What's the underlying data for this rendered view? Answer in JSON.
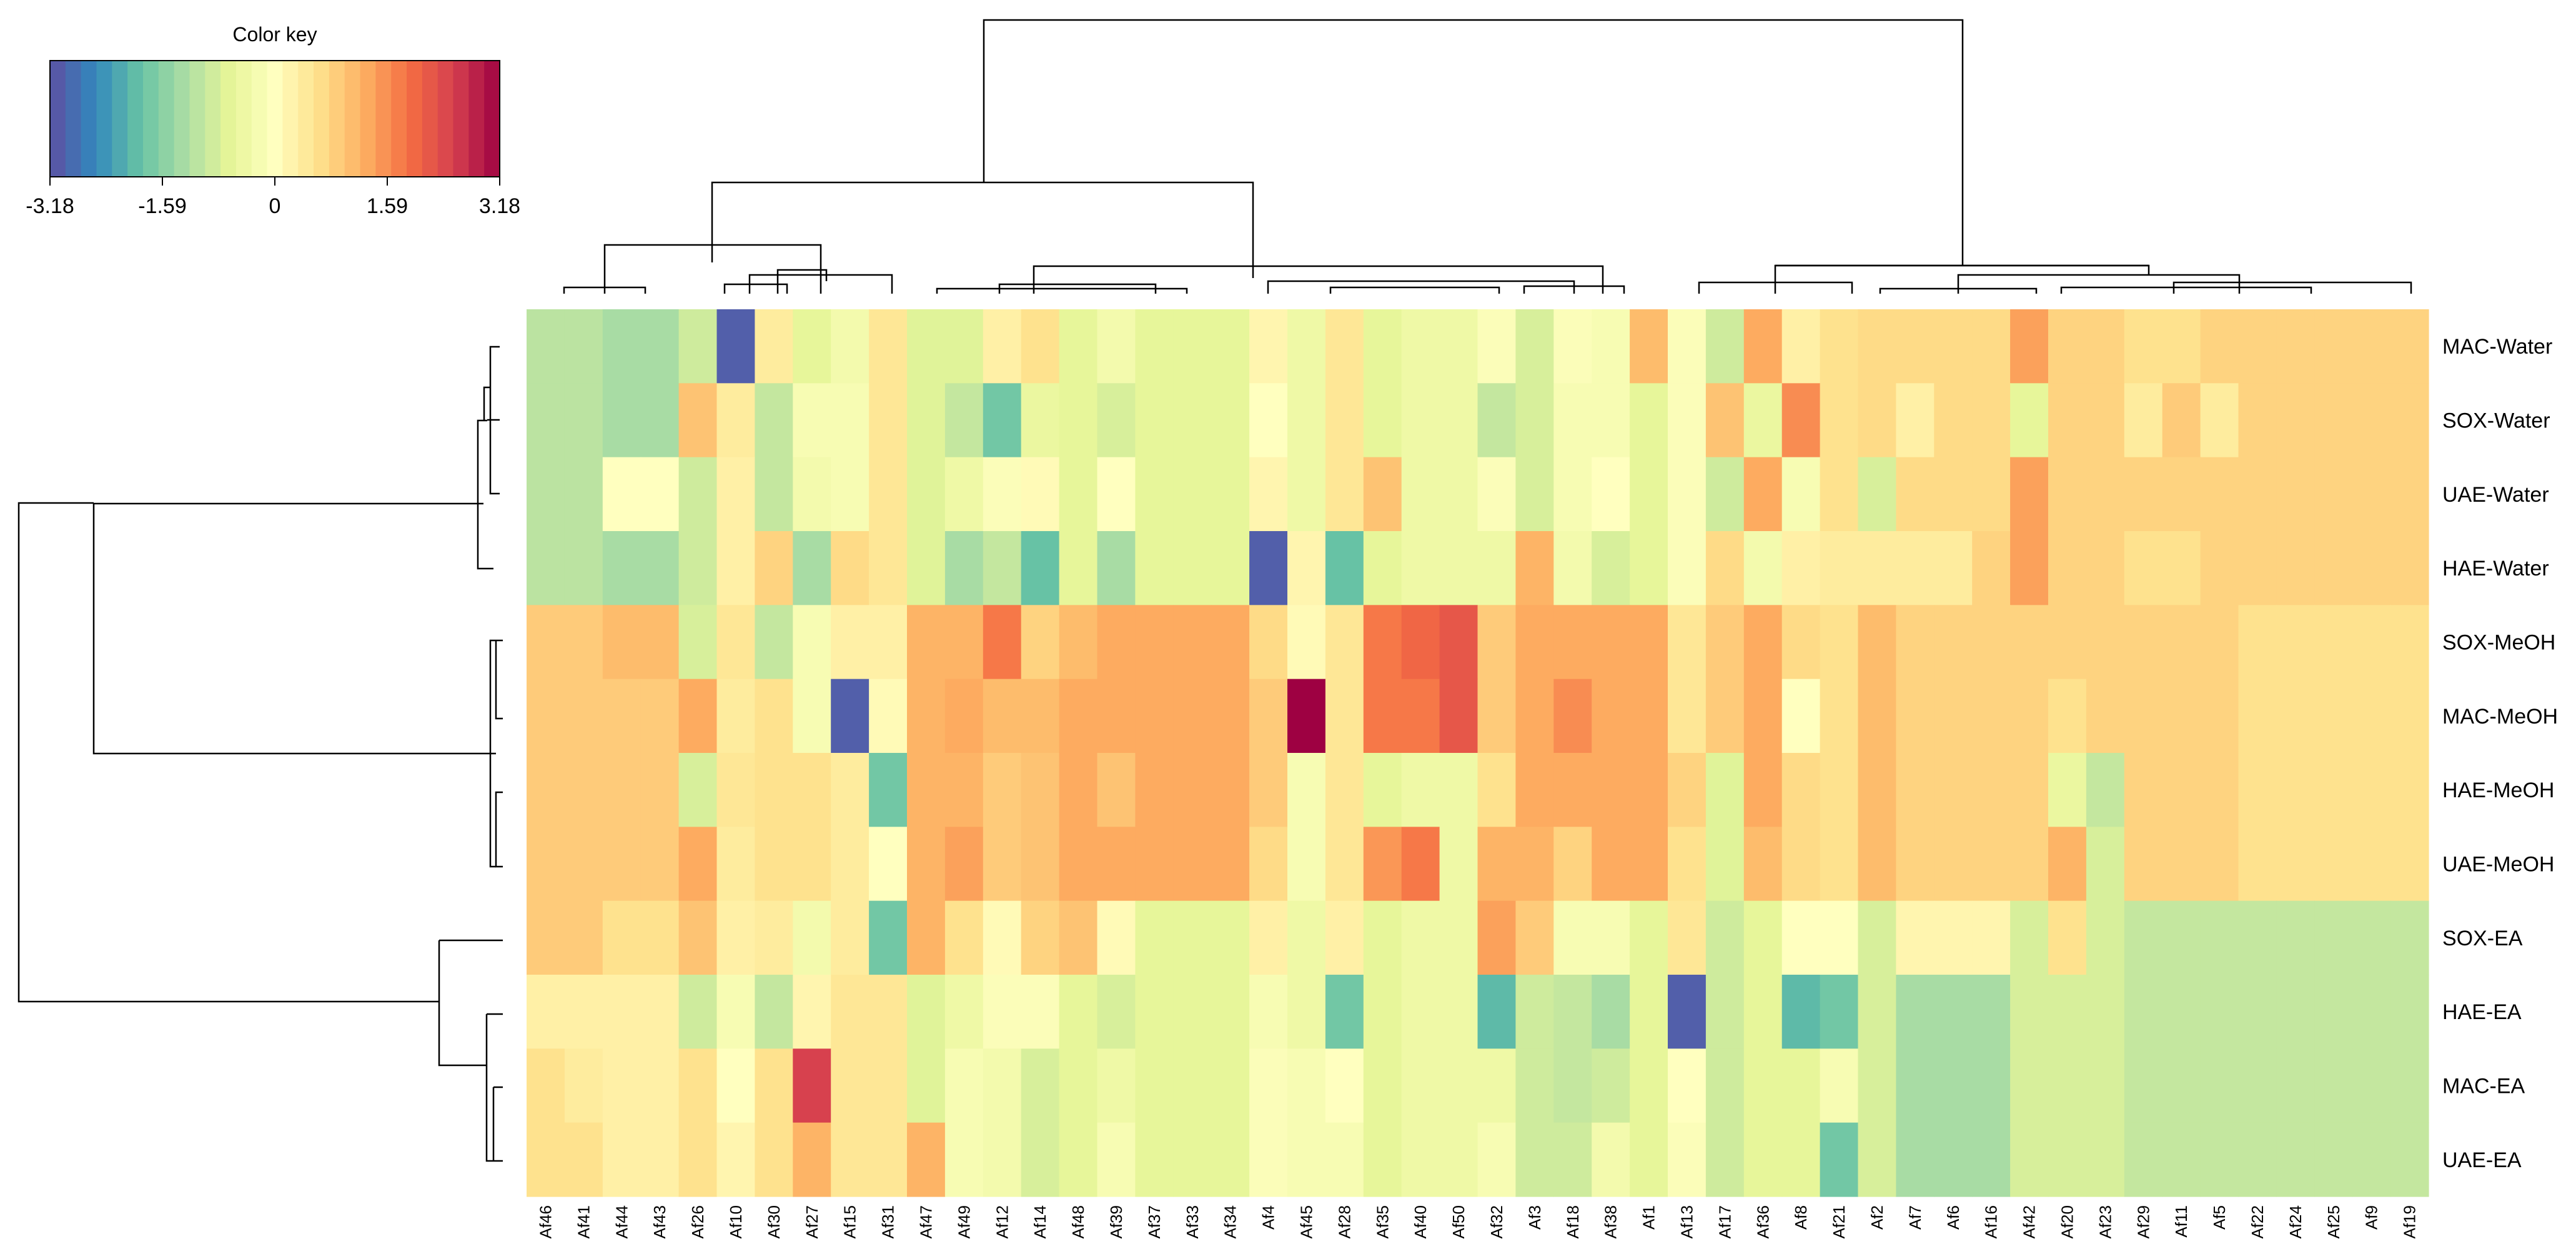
{
  "chart_data": {
    "type": "heatmap",
    "title": "",
    "color_key": {
      "title": "Color key",
      "min": -3.18,
      "max": 3.18,
      "ticks": [
        -3.18,
        -1.59,
        0,
        1.59,
        3.18
      ],
      "tick_labels": [
        "-3.18",
        "-1.59",
        "0",
        "1.59",
        "3.18"
      ],
      "palette": [
        "#5E4FA2",
        "#3288BD",
        "#66C2A5",
        "#ABDDA4",
        "#E6F598",
        "#FFFFBF",
        "#FEE08B",
        "#FDAE61",
        "#F46D43",
        "#D53E4F",
        "#9E0142"
      ]
    },
    "columns": [
      "Af46",
      "Af41",
      "Af44",
      "Af43",
      "Af26",
      "Af10",
      "Af30",
      "Af27",
      "Af15",
      "Af31",
      "Af47",
      "Af49",
      "Af12",
      "Af14",
      "Af48",
      "Af39",
      "Af37",
      "Af33",
      "Af34",
      "Af4",
      "Af45",
      "Af28",
      "Af35",
      "Af40",
      "Af50",
      "Af32",
      "Af3",
      "Af18",
      "Af38",
      "Af1",
      "Af13",
      "Af17",
      "Af36",
      "Af8",
      "Af21",
      "Af2",
      "Af7",
      "Af6",
      "Af16",
      "Af42",
      "Af20",
      "Af23",
      "Af29",
      "Af11",
      "Af5",
      "Af22",
      "Af24",
      "Af25",
      "Af9",
      "Af19"
    ],
    "rows": [
      "MAC-Water",
      "SOX-Water",
      "UAE-Water",
      "HAE-Water",
      "SOX-MeOH",
      "MAC-MeOH",
      "HAE-MeOH",
      "UAE-MeOH",
      "SOX-EA",
      "HAE-EA",
      "MAC-EA",
      "UAE-EA"
    ],
    "values": [
      [
        -1.1,
        -1.1,
        -1.3,
        -1.3,
        -0.9,
        -3.0,
        0.4,
        -0.6,
        -0.3,
        0.5,
        -0.7,
        -0.7,
        0.3,
        0.6,
        -0.6,
        -0.3,
        -0.6,
        -0.6,
        -0.6,
        0.2,
        -0.4,
        0.5,
        -0.6,
        -0.4,
        -0.4,
        -0.1,
        -0.8,
        -0.1,
        -0.2,
        1.1,
        -0.1,
        -0.9,
        1.3,
        0.3,
        0.6,
        0.7,
        0.7,
        0.7,
        0.7,
        1.4,
        0.8,
        0.8,
        0.6,
        0.6,
        0.8,
        0.8,
        0.8,
        0.8,
        0.8,
        0.8
      ],
      [
        -1.1,
        -1.1,
        -1.3,
        -1.3,
        1.0,
        0.4,
        -1.0,
        -0.2,
        -0.2,
        0.5,
        -0.7,
        -1.0,
        -1.8,
        -0.5,
        -0.6,
        -0.8,
        -0.6,
        -0.6,
        -0.6,
        0.0,
        -0.4,
        0.5,
        -0.6,
        -0.4,
        -0.4,
        -1.0,
        -0.8,
        -0.2,
        -0.2,
        -0.6,
        -0.1,
        1.0,
        -0.5,
        1.6,
        0.6,
        0.7,
        0.3,
        0.7,
        0.7,
        -0.6,
        0.8,
        0.8,
        0.4,
        0.9,
        0.4,
        0.8,
        0.8,
        0.8,
        0.8,
        0.8
      ],
      [
        -1.1,
        -1.1,
        0.0,
        0.0,
        -0.9,
        0.3,
        -1.0,
        -0.3,
        -0.2,
        0.5,
        -0.7,
        -0.4,
        -0.1,
        0.1,
        -0.6,
        0.0,
        -0.6,
        -0.6,
        -0.6,
        0.2,
        -0.4,
        0.5,
        1.0,
        -0.4,
        -0.4,
        -0.1,
        -0.8,
        -0.2,
        0.0,
        -0.6,
        -0.1,
        -0.9,
        1.3,
        -0.2,
        0.6,
        -0.8,
        0.7,
        0.7,
        0.7,
        1.4,
        0.8,
        0.8,
        0.8,
        0.8,
        0.8,
        0.8,
        0.8,
        0.8,
        0.8,
        0.8
      ],
      [
        -1.1,
        -1.1,
        -1.3,
        -1.3,
        -0.9,
        0.3,
        0.8,
        -1.3,
        0.7,
        0.5,
        -0.7,
        -1.3,
        -1.0,
        -1.9,
        -0.6,
        -1.3,
        -0.6,
        -0.6,
        -0.6,
        -3.0,
        0.2,
        -1.9,
        -0.6,
        -0.4,
        -0.4,
        -0.4,
        1.2,
        -0.3,
        -0.8,
        -0.6,
        -0.1,
        0.7,
        -0.3,
        0.3,
        0.4,
        0.4,
        0.4,
        0.4,
        0.8,
        1.4,
        0.8,
        0.8,
        0.6,
        0.6,
        0.8,
        0.8,
        0.8,
        0.8,
        0.8,
        0.8
      ],
      [
        0.9,
        0.9,
        1.1,
        1.1,
        -0.8,
        0.5,
        -1.0,
        -0.2,
        0.3,
        0.3,
        1.2,
        1.2,
        1.8,
        0.8,
        1.1,
        1.3,
        1.3,
        1.3,
        1.3,
        0.7,
        0.1,
        0.5,
        1.8,
        2.0,
        2.2,
        0.9,
        1.3,
        1.3,
        1.3,
        1.3,
        0.5,
        0.9,
        1.3,
        0.7,
        0.6,
        1.1,
        0.8,
        0.8,
        0.8,
        0.8,
        0.8,
        0.8,
        0.8,
        0.8,
        0.8,
        0.6,
        0.6,
        0.6,
        0.6,
        0.6
      ],
      [
        0.9,
        0.9,
        0.9,
        0.9,
        1.3,
        0.4,
        0.6,
        -0.2,
        -3.0,
        0.1,
        1.2,
        1.3,
        1.1,
        1.1,
        1.3,
        1.3,
        1.3,
        1.3,
        1.3,
        0.9,
        3.18,
        0.5,
        1.8,
        1.8,
        2.2,
        0.9,
        1.3,
        1.6,
        1.3,
        1.3,
        0.5,
        0.9,
        1.3,
        0.0,
        0.6,
        1.1,
        0.8,
        0.8,
        0.8,
        0.8,
        0.6,
        0.8,
        0.8,
        0.8,
        0.8,
        0.6,
        0.6,
        0.6,
        0.6,
        0.6
      ],
      [
        0.9,
        0.9,
        0.9,
        0.9,
        -0.8,
        0.5,
        0.6,
        0.6,
        0.4,
        -1.8,
        1.2,
        1.2,
        0.9,
        1.0,
        1.3,
        1.0,
        1.3,
        1.3,
        1.3,
        0.9,
        -0.2,
        0.5,
        -0.6,
        -0.4,
        -0.4,
        0.6,
        1.3,
        1.3,
        1.3,
        1.3,
        0.8,
        -0.7,
        1.3,
        0.7,
        0.6,
        1.1,
        0.8,
        0.8,
        0.8,
        0.8,
        -0.5,
        -1.0,
        0.8,
        0.8,
        0.8,
        0.6,
        0.6,
        0.6,
        0.6,
        0.6
      ],
      [
        0.9,
        0.9,
        0.9,
        0.9,
        1.3,
        0.4,
        0.6,
        0.6,
        0.4,
        0.0,
        1.2,
        1.4,
        0.9,
        1.0,
        1.3,
        1.3,
        1.3,
        1.3,
        1.3,
        0.7,
        -0.2,
        0.5,
        1.5,
        1.8,
        -0.4,
        1.2,
        1.2,
        0.8,
        1.3,
        1.3,
        0.6,
        -0.7,
        1.1,
        0.7,
        0.6,
        1.1,
        0.8,
        0.8,
        0.8,
        0.8,
        1.2,
        -0.8,
        0.8,
        0.8,
        0.8,
        0.6,
        0.6,
        0.6,
        0.6,
        0.6
      ],
      [
        0.9,
        0.9,
        0.6,
        0.6,
        1.0,
        0.3,
        0.4,
        -0.3,
        0.4,
        -1.8,
        1.2,
        0.6,
        0.1,
        0.8,
        1.0,
        0.1,
        -0.6,
        -0.6,
        -0.6,
        0.3,
        -0.4,
        0.3,
        -0.6,
        -0.4,
        -0.4,
        1.4,
        0.9,
        -0.2,
        -0.2,
        -0.6,
        0.5,
        -0.9,
        -0.6,
        0.0,
        0.0,
        -0.8,
        0.2,
        0.2,
        0.2,
        -0.8,
        0.6,
        -0.8,
        -1.0,
        -1.0,
        -1.0,
        -1.0,
        -1.0,
        -1.0,
        -1.0,
        -1.0
      ],
      [
        0.3,
        0.3,
        0.3,
        0.3,
        -0.9,
        -0.2,
        -1.0,
        0.2,
        0.5,
        0.5,
        -0.7,
        -0.4,
        -0.1,
        -0.1,
        -0.6,
        -0.8,
        -0.6,
        -0.6,
        -0.6,
        -0.2,
        -0.4,
        -1.8,
        -0.6,
        -0.4,
        -0.4,
        -2.0,
        -0.9,
        -1.0,
        -1.3,
        -0.6,
        -3.0,
        -0.9,
        -0.6,
        -2.0,
        -1.8,
        -0.8,
        -1.3,
        -1.3,
        -1.3,
        -0.8,
        -0.8,
        -0.8,
        -1.0,
        -1.0,
        -1.0,
        -1.0,
        -1.0,
        -1.0,
        -1.0,
        -1.0
      ],
      [
        0.6,
        0.4,
        0.3,
        0.3,
        0.6,
        0.0,
        0.6,
        2.5,
        0.5,
        0.5,
        -0.7,
        -0.2,
        -0.3,
        -0.8,
        -0.6,
        -0.4,
        -0.6,
        -0.6,
        -0.6,
        -0.1,
        -0.2,
        0.0,
        -0.6,
        -0.4,
        -0.4,
        -0.4,
        -0.9,
        -1.0,
        -0.9,
        -0.6,
        0.0,
        -0.9,
        -0.6,
        -0.6,
        -0.2,
        -0.8,
        -1.3,
        -1.3,
        -1.3,
        -0.8,
        -0.8,
        -0.8,
        -1.0,
        -1.0,
        -1.0,
        -1.0,
        -1.0,
        -1.0,
        -1.0,
        -1.0
      ],
      [
        0.6,
        0.6,
        0.3,
        0.3,
        0.6,
        0.2,
        0.6,
        1.2,
        0.5,
        0.5,
        1.2,
        -0.2,
        -0.3,
        -0.8,
        -0.6,
        -0.2,
        -0.6,
        -0.6,
        -0.6,
        -0.1,
        -0.2,
        -0.2,
        -0.6,
        -0.4,
        -0.4,
        -0.2,
        -0.9,
        -0.9,
        -0.3,
        -0.6,
        -0.1,
        -0.9,
        -0.6,
        -0.6,
        -1.8,
        -0.8,
        -1.3,
        -1.3,
        -1.3,
        -0.8,
        -0.8,
        -0.8,
        -1.0,
        -1.0,
        -1.0,
        -1.0,
        -1.0,
        -1.0,
        -1.0,
        -1.0
      ]
    ]
  }
}
